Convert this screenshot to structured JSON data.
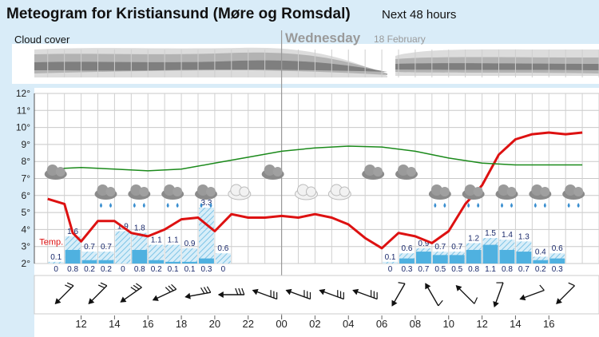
{
  "header": {
    "title": "Meteogram for Kristiansund (Møre og Romsdal)",
    "subtitle": "Next 48 hours"
  },
  "cloud_cover": {
    "label": "Cloud cover",
    "day_name": "Wednesday",
    "day_date": "18 February"
  },
  "chart_data": {
    "type": "line",
    "x_unit": "hour",
    "x_tick_labels": [
      "12",
      "14",
      "16",
      "18",
      "20",
      "22",
      "00",
      "02",
      "04",
      "06",
      "08",
      "10",
      "12",
      "14",
      "16"
    ],
    "y_tick_labels": [
      "2°",
      "3°",
      "4°",
      "5°",
      "6°",
      "7°",
      "8°",
      "9°",
      "10°",
      "11°",
      "12°"
    ],
    "ylim": [
      2,
      12
    ],
    "temp_label": "Temp.",
    "series": [
      {
        "name": "Temp.",
        "color": "#dd1111",
        "hours": [
          10,
          11,
          11.5,
          12,
          13,
          14,
          15,
          16,
          17,
          18,
          19,
          20,
          21,
          22,
          23,
          24,
          25,
          26,
          27,
          28,
          29,
          30,
          31,
          32,
          33,
          34,
          35,
          36,
          37,
          38,
          39,
          40,
          41,
          42
        ],
        "values": [
          5.8,
          5.5,
          3.8,
          3.3,
          4.5,
          4.5,
          3.8,
          3.6,
          4.0,
          4.6,
          4.7,
          3.9,
          4.9,
          4.7,
          4.7,
          4.8,
          4.7,
          4.9,
          4.7,
          4.3,
          3.5,
          2.9,
          3.8,
          3.6,
          3.2,
          3.9,
          5.5,
          6.6,
          8.4,
          9.3,
          9.6,
          9.7,
          9.6,
          9.7
        ]
      },
      {
        "name": "",
        "color": "#1b8a1b",
        "hours": [
          10,
          12,
          14,
          16,
          18,
          20,
          22,
          24,
          26,
          28,
          30,
          32,
          34,
          36,
          38,
          40,
          42
        ],
        "values": [
          7.55,
          7.65,
          7.55,
          7.45,
          7.55,
          7.9,
          8.25,
          8.6,
          8.8,
          8.9,
          8.85,
          8.6,
          8.2,
          7.9,
          7.8,
          7.8,
          7.8
        ]
      }
    ],
    "precipitation": {
      "hours": [
        10,
        11,
        12,
        13,
        14,
        15,
        16,
        17,
        18,
        19,
        20,
        21,
        30,
        31,
        32,
        33,
        34,
        35,
        36,
        37,
        38,
        39,
        40,
        41
      ],
      "max_values": [
        "0.1",
        "1.6",
        "0.7",
        "0.7",
        "1.9",
        "1.8",
        "1.1",
        "1.1",
        "0.9",
        "3.3",
        "0.6",
        "",
        "0.1",
        "0.6",
        "0.9",
        "0.7",
        "0.7",
        "1.2",
        "1.5",
        "1.4",
        "1.3",
        "0.4",
        "0.6",
        ""
      ],
      "max_amounts": [
        0.1,
        1.6,
        0.7,
        0.7,
        1.9,
        1.8,
        1.1,
        1.1,
        0.9,
        3.3,
        0.6,
        0,
        0.1,
        0.6,
        0.9,
        0.7,
        0.7,
        1.2,
        1.5,
        1.4,
        1.3,
        0.4,
        0.6,
        0
      ],
      "values": [
        "0",
        "0.8",
        "0.2",
        "0.2",
        "0",
        "0.8",
        "0.2",
        "0.1",
        "0.1",
        "0.3",
        "0",
        "",
        "0",
        "0.3",
        "0.7",
        "0.5",
        "0.5",
        "0.8",
        "1.1",
        "0.8",
        "0.7",
        "0.2",
        "0.3",
        ""
      ],
      "amounts": [
        0,
        0.8,
        0.2,
        0.2,
        0,
        0.8,
        0.2,
        0.1,
        0.1,
        0.3,
        0,
        0,
        0,
        0.3,
        0.7,
        0.5,
        0.5,
        0.8,
        1.1,
        0.8,
        0.7,
        0.2,
        0.3,
        0
      ]
    },
    "weather_icons": [
      {
        "hour": 10,
        "icon": "cloud-icon"
      },
      {
        "hour": 13,
        "icon": "cloud-rain-icon"
      },
      {
        "hour": 15,
        "icon": "cloud-rain-icon"
      },
      {
        "hour": 17,
        "icon": "cloud-rain-icon"
      },
      {
        "hour": 19,
        "icon": "cloud-rain-icon"
      },
      {
        "hour": 21,
        "icon": "moon-cloud-icon"
      },
      {
        "hour": 23,
        "icon": "cloud-icon"
      },
      {
        "hour": 25,
        "icon": "moon-cloud-icon"
      },
      {
        "hour": 27,
        "icon": "moon-cloud-icon"
      },
      {
        "hour": 29,
        "icon": "cloud-icon"
      },
      {
        "hour": 31,
        "icon": "cloud-icon"
      },
      {
        "hour": 33,
        "icon": "cloud-rain-icon"
      },
      {
        "hour": 35,
        "icon": "cloud-rain-icon"
      },
      {
        "hour": 37,
        "icon": "cloud-rain-icon"
      },
      {
        "hour": 39,
        "icon": "cloud-rain-icon"
      },
      {
        "hour": 41,
        "icon": "cloud-rain-icon"
      }
    ],
    "wind": [
      {
        "hour": 11,
        "dir_deg": 225,
        "barbs": 2
      },
      {
        "hour": 13,
        "dir_deg": 225,
        "barbs": 2
      },
      {
        "hour": 15,
        "dir_deg": 235,
        "barbs": 3
      },
      {
        "hour": 17,
        "dir_deg": 245,
        "barbs": 3
      },
      {
        "hour": 19,
        "dir_deg": 260,
        "barbs": 3
      },
      {
        "hour": 21,
        "dir_deg": 270,
        "barbs": 3
      },
      {
        "hour": 23,
        "dir_deg": 290,
        "barbs": 3
      },
      {
        "hour": 25,
        "dir_deg": 290,
        "barbs": 3
      },
      {
        "hour": 27,
        "dir_deg": 290,
        "barbs": 3
      },
      {
        "hour": 29,
        "dir_deg": 290,
        "barbs": 3
      },
      {
        "hour": 31,
        "dir_deg": 210,
        "barbs": 1
      },
      {
        "hour": 33,
        "dir_deg": 330,
        "barbs": 1
      },
      {
        "hour": 35,
        "dir_deg": 315,
        "barbs": 1
      },
      {
        "hour": 37,
        "dir_deg": 200,
        "barbs": 1
      },
      {
        "hour": 39,
        "dir_deg": 250,
        "barbs": 1
      },
      {
        "hour": 41,
        "dir_deg": 225,
        "barbs": 1
      }
    ],
    "x_range_hours": [
      9.2,
      43
    ]
  }
}
